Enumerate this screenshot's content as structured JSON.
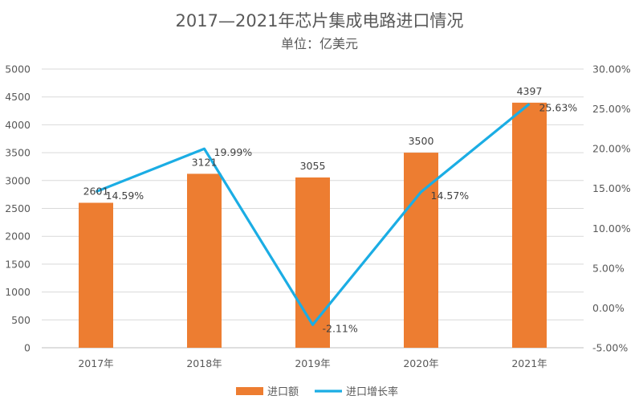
{
  "chart_data": {
    "type": "bar+line",
    "title": "2017—2021年芯片集成电路进口情况",
    "subtitle": "单位：亿美元",
    "categories": [
      "2017年",
      "2018年",
      "2019年",
      "2020年",
      "2021年"
    ],
    "series": [
      {
        "name": "进口额",
        "type": "bar",
        "axis": "left",
        "color": "#ED7D31",
        "values": [
          2601,
          3121,
          3055,
          3500,
          4397
        ],
        "labels": [
          "2601",
          "3121",
          "3055",
          "3500",
          "4397"
        ]
      },
      {
        "name": "进口增长率",
        "type": "line",
        "axis": "right",
        "color": "#1BADE4",
        "values": [
          14.59,
          19.99,
          -2.11,
          14.57,
          25.63
        ],
        "labels": [
          "14.59%",
          "19.99%",
          "-2.11%",
          "14.57%",
          "25.63%"
        ]
      }
    ],
    "left_axis": {
      "min": 0,
      "max": 5000,
      "step": 500,
      "ticks": [
        "0",
        "500",
        "1000",
        "1500",
        "2000",
        "2500",
        "3000",
        "3500",
        "4000",
        "4500",
        "5000"
      ]
    },
    "right_axis": {
      "min": -5,
      "max": 30,
      "step": 5,
      "ticks": [
        "-5.00%",
        "0.00%",
        "5.00%",
        "10.00%",
        "15.00%",
        "20.00%",
        "25.00%",
        "30.00%"
      ]
    },
    "legend": [
      "进口额",
      "进口增长率"
    ],
    "legend_position": "bottom",
    "gridlines": true
  }
}
